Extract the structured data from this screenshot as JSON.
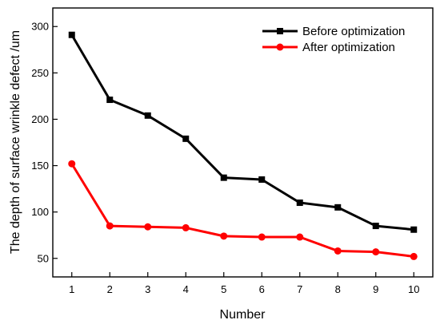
{
  "chart_data": {
    "type": "line",
    "title": "",
    "xlabel": "Number",
    "ylabel": "The depth of surface wrinkle defect /um",
    "x": [
      1,
      2,
      3,
      4,
      5,
      6,
      7,
      8,
      9,
      10
    ],
    "xlim": [
      0.5,
      10.5
    ],
    "ylim": [
      30,
      320
    ],
    "xticks": [
      "1",
      "2",
      "3",
      "4",
      "5",
      "6",
      "7",
      "8",
      "9",
      "10"
    ],
    "yticks": [
      "50",
      "100",
      "150",
      "200",
      "250",
      "300"
    ],
    "grid": false,
    "legend_position": "top-right",
    "series": [
      {
        "name": "Before optimization",
        "color": "#000000",
        "marker": "square",
        "values": [
          291,
          221,
          204,
          179,
          137,
          135,
          110,
          105,
          85,
          81
        ]
      },
      {
        "name": "After optimization",
        "color": "#ff0000",
        "marker": "circle",
        "values": [
          152,
          85,
          84,
          83,
          74,
          73,
          73,
          58,
          57,
          52
        ]
      }
    ]
  }
}
